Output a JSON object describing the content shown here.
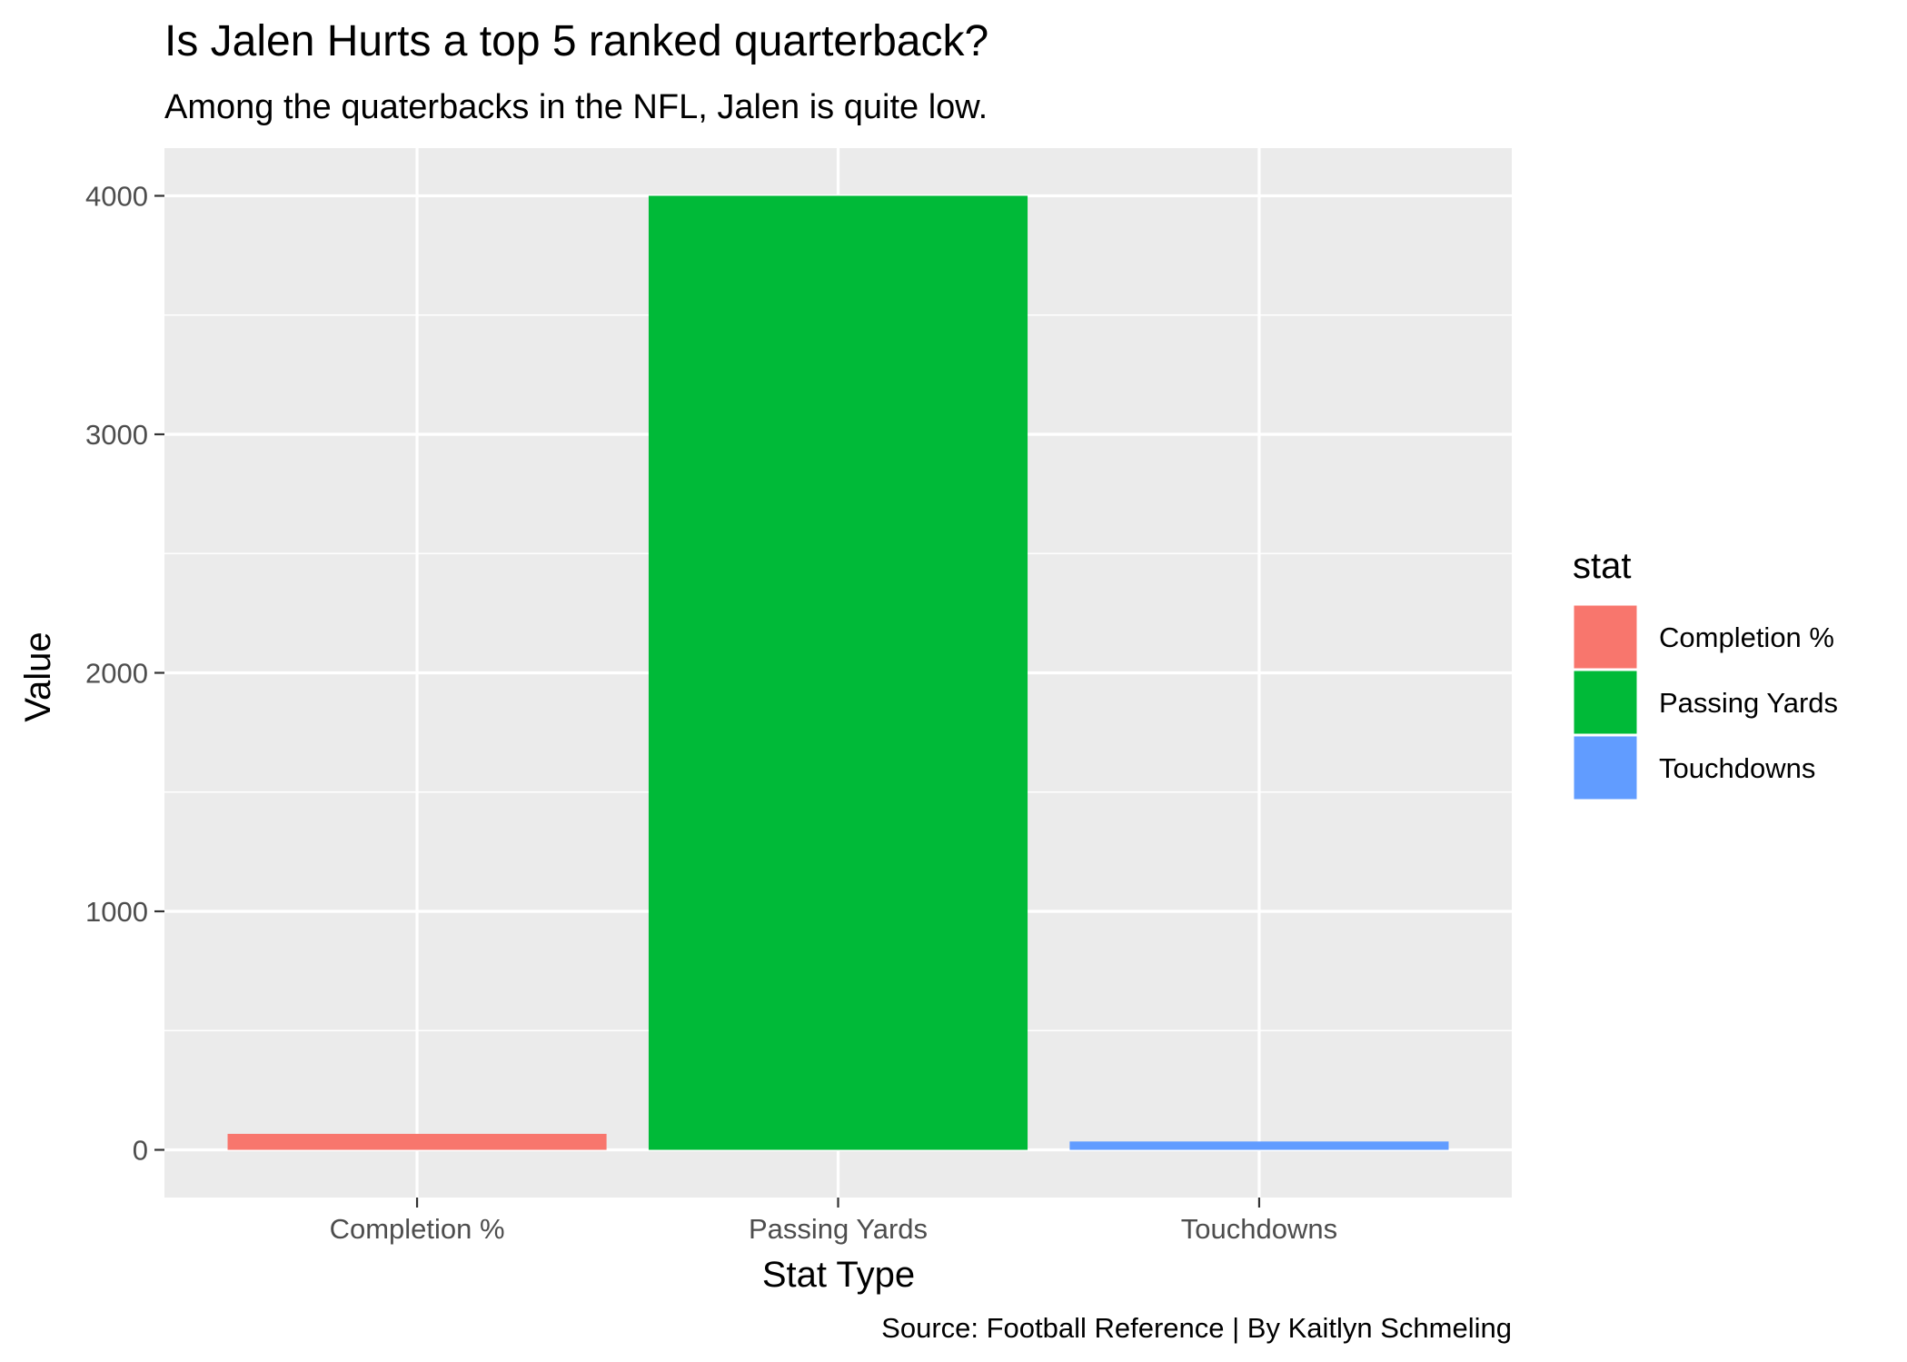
{
  "chart_data": {
    "type": "bar",
    "title": "Is Jalen Hurts a top 5 ranked quarterback?",
    "subtitle": "Among the quaterbacks in the NFL, Jalen is quite low.",
    "caption": "Source: Football Reference | By Kaitlyn Schmeling",
    "xlabel": "Stat Type",
    "ylabel": "Value",
    "categories": [
      "Completion %",
      "Passing Yards",
      "Touchdowns"
    ],
    "values": [
      67,
      4000,
      35
    ],
    "colors": [
      "#F8766D",
      "#00BA38",
      "#619CFF"
    ],
    "ylim": [
      -200,
      4200
    ],
    "yticks": [
      0,
      1000,
      2000,
      3000,
      4000
    ],
    "ytick_labels": [
      "0",
      "1000",
      "2000",
      "3000",
      "4000"
    ],
    "grid": true,
    "legend": {
      "title": "stat",
      "position": "right",
      "entries": [
        "Completion %",
        "Passing Yards",
        "Touchdowns"
      ]
    },
    "panel_background": "#EBEBEB",
    "grid_color": "#FFFFFF"
  }
}
